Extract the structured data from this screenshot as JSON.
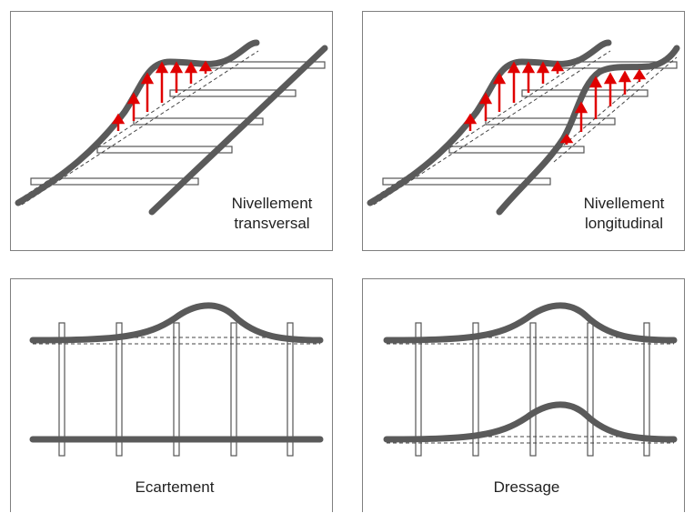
{
  "colors": {
    "rail": "#5a5a5a",
    "sleeper_stroke": "#555555",
    "reference_line": "#444444",
    "arrow": "#e00000",
    "border": "#7f7f7f"
  },
  "panels": [
    {
      "id": "nivellement-transversal",
      "caption_lines": [
        "Nivellement",
        "transversal"
      ]
    },
    {
      "id": "nivellement-longitudinal",
      "caption_lines": [
        "Nivellement",
        "longitudinal"
      ]
    },
    {
      "id": "ecartement",
      "caption_lines": [
        "Ecartement"
      ]
    },
    {
      "id": "dressage",
      "caption_lines": [
        "Dressage"
      ]
    }
  ]
}
